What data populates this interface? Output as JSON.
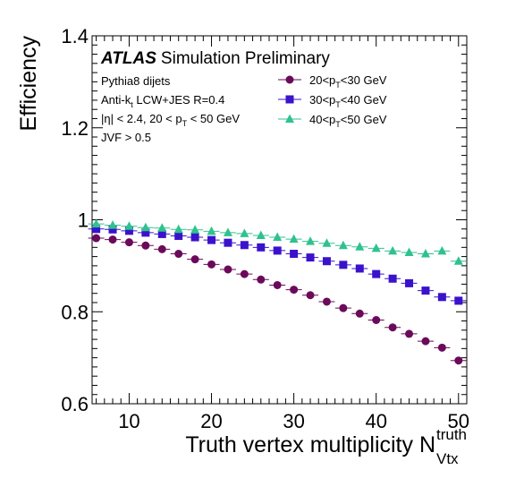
{
  "chart_data": {
    "type": "scatter",
    "header": {
      "experiment": "ATLAS",
      "label": "Simulation Preliminary"
    },
    "info_lines": [
      {
        "base": "Pythia8 dijets"
      },
      {
        "base": "Anti-k",
        "sub": "t",
        "rest": " LCW+JES R=0.4"
      },
      {
        "base": "|η| < 2.4, 20 < p",
        "sub": "T",
        "rest": " < 50 GeV"
      },
      {
        "base": "JVF > 0.5"
      }
    ],
    "xlabel": {
      "main": "Truth vertex multiplicity N",
      "sup": "truth",
      "sub": "Vtx"
    },
    "ylabel": "Efficiency",
    "xlim": [
      5.5,
      51
    ],
    "ylim": [
      0.6,
      1.4
    ],
    "xticks": [
      10,
      20,
      30,
      40,
      50
    ],
    "yticks": [
      0.6,
      0.8,
      1,
      1.2,
      1.4
    ],
    "ytick_labels": [
      "0.6",
      "0.8",
      "1",
      "1.2",
      "1.4"
    ],
    "x": [
      6,
      8,
      10,
      12,
      14,
      16,
      18,
      20,
      22,
      24,
      26,
      28,
      30,
      32,
      34,
      36,
      38,
      40,
      42,
      44,
      46,
      48,
      50
    ],
    "series": [
      {
        "legend": {
          "pre": "20<p",
          "sub": "T",
          "post": "<30 GeV"
        },
        "color": "#6b0a5a",
        "marker": "circle",
        "values": [
          0.96,
          0.957,
          0.951,
          0.944,
          0.936,
          0.926,
          0.914,
          0.903,
          0.892,
          0.882,
          0.87,
          0.858,
          0.848,
          0.836,
          0.822,
          0.808,
          0.796,
          0.782,
          0.766,
          0.752,
          0.736,
          0.722,
          0.694
        ]
      },
      {
        "legend": {
          "pre": "30<p",
          "sub": "T",
          "post": "<40 GeV"
        },
        "color": "#3a12cc",
        "marker": "square",
        "values": [
          0.98,
          0.979,
          0.976,
          0.972,
          0.969,
          0.965,
          0.962,
          0.956,
          0.95,
          0.945,
          0.94,
          0.933,
          0.926,
          0.918,
          0.91,
          0.902,
          0.894,
          0.882,
          0.872,
          0.862,
          0.846,
          0.832,
          0.824
        ]
      },
      {
        "legend": {
          "pre": "40<p",
          "sub": "T",
          "post": "<50 GeV"
        },
        "color": "#2ec28e",
        "marker": "triangle",
        "values": [
          0.991,
          0.988,
          0.986,
          0.983,
          0.982,
          0.979,
          0.978,
          0.975,
          0.972,
          0.97,
          0.966,
          0.962,
          0.958,
          0.953,
          0.949,
          0.944,
          0.941,
          0.938,
          0.932,
          0.929,
          0.926,
          0.932,
          0.91
        ]
      }
    ]
  }
}
